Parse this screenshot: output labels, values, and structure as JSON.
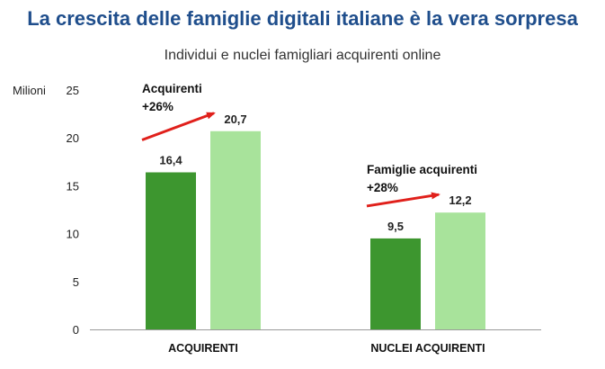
{
  "title": "La crescita delle famiglie digitali italiane è la vera sorpresa",
  "subtitle": "Individui e nuclei famigliari acquirenti online",
  "chart_data": {
    "type": "bar",
    "title": "Individui e nuclei famigliari acquirenti online",
    "ylabel": "Milioni",
    "xlabel": "",
    "ylim": [
      0,
      25
    ],
    "yticks": [
      0,
      5,
      10,
      15,
      20,
      25
    ],
    "grid": false,
    "categories": [
      "ACQUIRENTI",
      "NUCLEI ACQUIRENTI"
    ],
    "groups": [
      {
        "category": "ACQUIRENTI",
        "values": [
          16.4,
          20.7
        ],
        "value_labels": [
          "16,4",
          "20,7"
        ],
        "annotation": {
          "label": "Acquirenti",
          "growth": "+26%"
        }
      },
      {
        "category": "NUCLEI ACQUIRENTI",
        "values": [
          9.5,
          12.2
        ],
        "value_labels": [
          "9,5",
          "12,2"
        ],
        "annotation": {
          "label": "Famiglie acquirenti",
          "growth": "+28%"
        }
      }
    ],
    "colors": {
      "bar_first": "#3d962f",
      "bar_second": "#a8e39b",
      "arrow": "#e0201b",
      "title": "#1f4e8c"
    }
  }
}
